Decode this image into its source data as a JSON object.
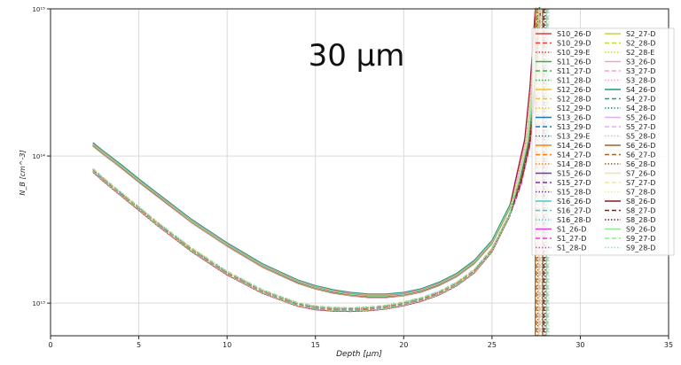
{
  "chart_data": {
    "type": "line",
    "annotation": "30 µm",
    "xlabel": "Depth [µm]",
    "ylabel": "N_B [cm^-3]",
    "y_scale": "log",
    "xlim": [
      0,
      35
    ],
    "ylim": [
      6000000000000.0,
      1000000000000000.0
    ],
    "x_ticks": [
      0,
      5,
      10,
      15,
      20,
      25,
      30,
      35
    ],
    "y_ticks": [
      {
        "value": 10000000000000.0,
        "label": "10¹³"
      },
      {
        "value": 100000000000000.0,
        "label": "10¹⁴"
      },
      {
        "value": 1000000000000000.0,
        "label": "10¹⁵"
      }
    ],
    "grid": true,
    "legend_position": "right",
    "group_upper": {
      "description": "upper curves",
      "x": [
        2.4,
        3,
        4,
        5,
        6,
        8,
        10,
        12,
        14,
        15,
        16,
        17,
        18,
        19,
        20,
        21,
        22,
        23,
        24,
        25,
        26,
        26.5,
        27,
        27.3,
        27.6
      ],
      "y": [
        120000000000000.0,
        105000000000000.0,
        85000000000000.0,
        68000000000000.0,
        55000000000000.0,
        36000000000000.0,
        25000000000000.0,
        18000000000000.0,
        14000000000000.0,
        12800000000000.0,
        12000000000000.0,
        11500000000000.0,
        11200000000000.0,
        11200000000000.0,
        11500000000000.0,
        12200000000000.0,
        13500000000000.0,
        15500000000000.0,
        19000000000000.0,
        26000000000000.0,
        45000000000000.0,
        70000000000000.0,
        130000000000000.0,
        300000000000000.0,
        1000000000000000.0
      ]
    },
    "group_lower": {
      "description": "lower curves",
      "x": [
        2.4,
        3,
        4,
        5,
        6,
        8,
        10,
        12,
        14,
        15,
        16,
        17,
        18,
        19,
        20,
        21,
        22,
        23,
        24,
        25,
        26,
        26.5,
        27,
        27.3,
        27.6
      ],
      "y": [
        80000000000000.0,
        69000000000000.0,
        55000000000000.0,
        44000000000000.0,
        35000000000000.0,
        23000000000000.0,
        16000000000000.0,
        12000000000000.0,
        9800000000000.0,
        9300000000000.0,
        9100000000000.0,
        9050000000000.0,
        9150000000000.0,
        9400000000000.0,
        9900000000000.0,
        10600000000000.0,
        11700000000000.0,
        13500000000000.0,
        16500000000000.0,
        23000000000000.0,
        40000000000000.0,
        65000000000000.0,
        120000000000000.0,
        280000000000000.0,
        1000000000000000.0
      ]
    },
    "series": [
      {
        "name": "S10_26-D",
        "color": "#e63b3b",
        "dash": "solid",
        "group": "lower"
      },
      {
        "name": "S10_29-D",
        "color": "#e63b3b",
        "dash": "dashed",
        "group": "lower"
      },
      {
        "name": "S10_29-E",
        "color": "#e63b3b",
        "dash": "dotted",
        "group": "lower"
      },
      {
        "name": "S11_26-D",
        "color": "#3cb043",
        "dash": "solid",
        "group": "upper"
      },
      {
        "name": "S11_27-D",
        "color": "#3cb043",
        "dash": "dashed",
        "group": "lower"
      },
      {
        "name": "S11_28-D",
        "color": "#3cb043",
        "dash": "dotted",
        "group": "lower"
      },
      {
        "name": "S12_26-D",
        "color": "#f5c518",
        "dash": "solid",
        "group": "upper"
      },
      {
        "name": "S12_28-D",
        "color": "#f5c518",
        "dash": "dashed",
        "group": "lower"
      },
      {
        "name": "S12_29-D",
        "color": "#f5c518",
        "dash": "dotted",
        "group": "lower"
      },
      {
        "name": "S13_26-D",
        "color": "#1f77b4",
        "dash": "solid",
        "group": "upper"
      },
      {
        "name": "S13_29-D",
        "color": "#1f77b4",
        "dash": "dashed",
        "group": "lower"
      },
      {
        "name": "S13_29-E",
        "color": "#1f77b4",
        "dash": "dotted",
        "group": "lower"
      },
      {
        "name": "S14_26-D",
        "color": "#ff7f0e",
        "dash": "solid",
        "group": "upper"
      },
      {
        "name": "S14_27-D",
        "color": "#ff7f0e",
        "dash": "dashed",
        "group": "lower"
      },
      {
        "name": "S14_28-D",
        "color": "#ff7f0e",
        "dash": "dotted",
        "group": "lower"
      },
      {
        "name": "S15_26-D",
        "color": "#7b2fbe",
        "dash": "solid",
        "group": "upper"
      },
      {
        "name": "S15_27-D",
        "color": "#7b2fbe",
        "dash": "dashed",
        "group": "lower"
      },
      {
        "name": "S15_28-D",
        "color": "#7b2fbe",
        "dash": "dotted",
        "group": "lower"
      },
      {
        "name": "S16_26-D",
        "color": "#40d0d0",
        "dash": "solid",
        "group": "upper"
      },
      {
        "name": "S16_27-D",
        "color": "#40d0d0",
        "dash": "dashed",
        "group": "lower"
      },
      {
        "name": "S16_28-D",
        "color": "#40d0d0",
        "dash": "dotted",
        "group": "lower"
      },
      {
        "name": "S1_26-D",
        "color": "#e040e0",
        "dash": "solid",
        "group": "upper"
      },
      {
        "name": "S1_27-D",
        "color": "#e040e0",
        "dash": "dashed",
        "group": "lower"
      },
      {
        "name": "S1_28-D",
        "color": "#e040e0",
        "dash": "dotted",
        "group": "lower"
      },
      {
        "name": "S2_27-D",
        "color": "#c8d63a",
        "dash": "solid",
        "group": "upper"
      },
      {
        "name": "S2_28-D",
        "color": "#c8d63a",
        "dash": "dashed",
        "group": "lower"
      },
      {
        "name": "S2_28-E",
        "color": "#c8d63a",
        "dash": "dotted",
        "group": "lower"
      },
      {
        "name": "S3_26-D",
        "color": "#f5a3b5",
        "dash": "solid",
        "group": "upper"
      },
      {
        "name": "S3_27-D",
        "color": "#f5a3b5",
        "dash": "dashed",
        "group": "lower"
      },
      {
        "name": "S3_28-D",
        "color": "#f5a3b5",
        "dash": "dotted",
        "group": "lower"
      },
      {
        "name": "S4_26-D",
        "color": "#1a9a80",
        "dash": "solid",
        "group": "upper"
      },
      {
        "name": "S4_27-D",
        "color": "#1a9a80",
        "dash": "dashed",
        "group": "lower"
      },
      {
        "name": "S4_28-D",
        "color": "#1a9a80",
        "dash": "dotted",
        "group": "lower"
      },
      {
        "name": "S5_26-D",
        "color": "#dcb0f0",
        "dash": "solid",
        "group": "upper"
      },
      {
        "name": "S5_27-D",
        "color": "#dcb0f0",
        "dash": "dashed",
        "group": "lower"
      },
      {
        "name": "S5_28-D",
        "color": "#dcb0f0",
        "dash": "dotted",
        "group": "lower"
      },
      {
        "name": "S6_26-D",
        "color": "#a0622a",
        "dash": "solid",
        "group": "upper"
      },
      {
        "name": "S6_27-D",
        "color": "#a0622a",
        "dash": "dashed",
        "group": "lower"
      },
      {
        "name": "S6_28-D",
        "color": "#a0622a",
        "dash": "dotted",
        "group": "lower"
      },
      {
        "name": "S7_26-D",
        "color": "#f2e3a0",
        "dash": "solid",
        "group": "upper"
      },
      {
        "name": "S7_27-D",
        "color": "#f2e3a0",
        "dash": "dashed",
        "group": "lower"
      },
      {
        "name": "S7_28-D",
        "color": "#f2e3a0",
        "dash": "dotted",
        "group": "lower"
      },
      {
        "name": "S8_26-D",
        "color": "#8b1a1a",
        "dash": "solid",
        "group": "upper"
      },
      {
        "name": "S8_27-D",
        "color": "#8b1a1a",
        "dash": "dashed",
        "group": "lower"
      },
      {
        "name": "S8_28-D",
        "color": "#8b1a1a",
        "dash": "dotted",
        "group": "lower"
      },
      {
        "name": "S9_26-D",
        "color": "#90e890",
        "dash": "solid",
        "group": "upper"
      },
      {
        "name": "S9_27-D",
        "color": "#90e890",
        "dash": "dashed",
        "group": "lower"
      },
      {
        "name": "S9_28-D",
        "color": "#90e890",
        "dash": "dotted",
        "group": "lower"
      }
    ]
  }
}
